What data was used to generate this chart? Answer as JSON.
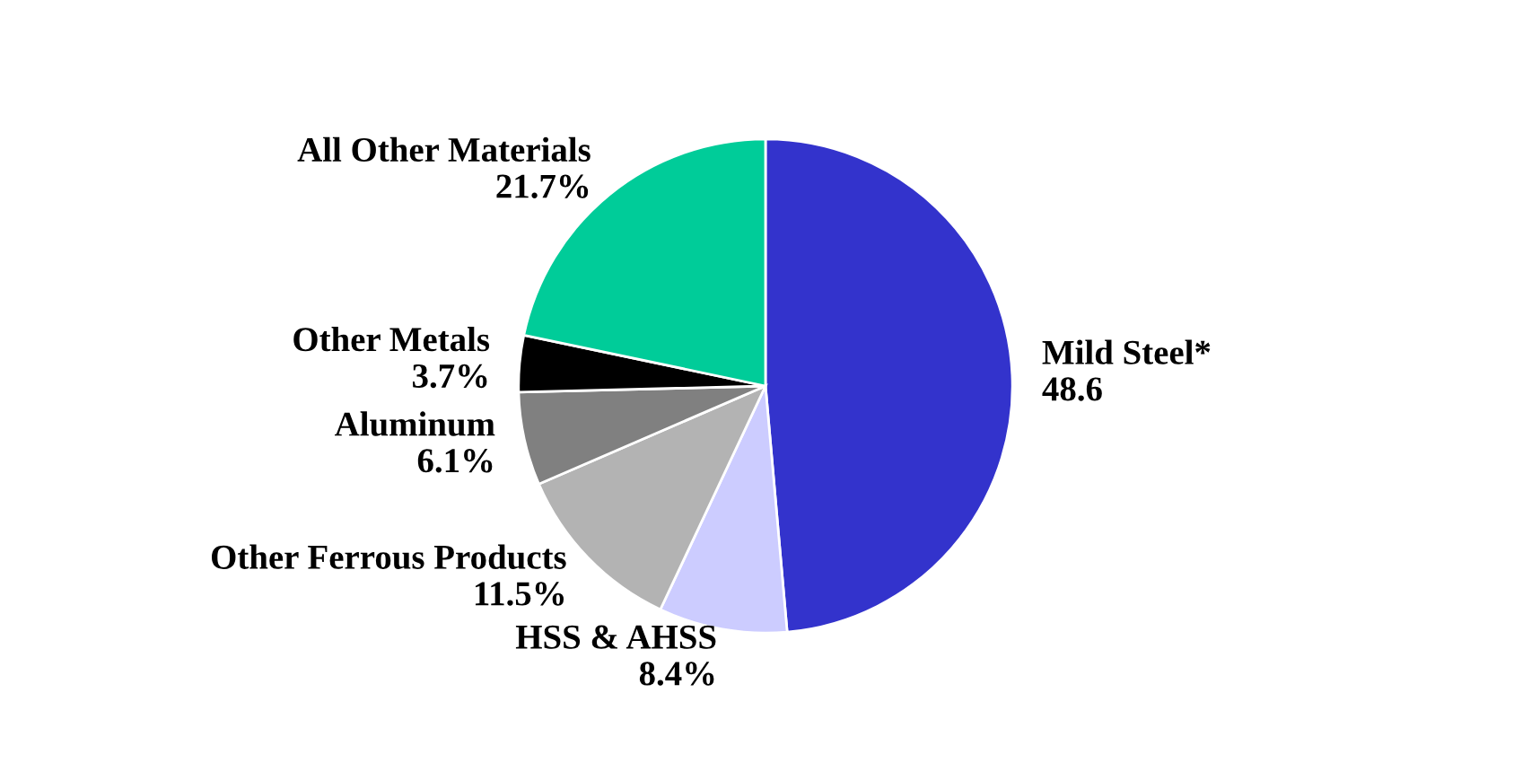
{
  "chart_data": {
    "type": "pie",
    "categories": [
      "Mild Steel*",
      "HSS & AHSS",
      "Other Ferrous Products",
      "Aluminum",
      "Other Metals",
      "All Other Materials"
    ],
    "values": [
      48.6,
      8.4,
      11.5,
      6.1,
      3.7,
      21.7
    ],
    "value_labels": [
      "48.6",
      "8.4%",
      "11.5%",
      "6.1%",
      "3.7%",
      "21.7%"
    ],
    "colors": [
      "#3333cc",
      "#ccccff",
      "#b3b3b3",
      "#808080",
      "#000000",
      "#00cc99"
    ]
  }
}
